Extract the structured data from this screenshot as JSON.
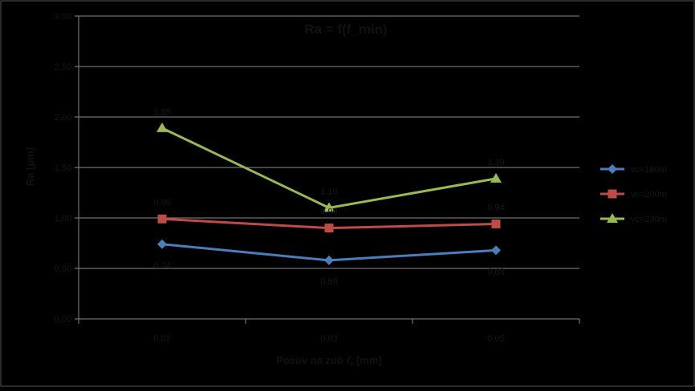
{
  "chart_data": {
    "type": "line",
    "title": "Ra = f(f_min)",
    "xlabel": "Posuv na zub",
    "xlabel_sub": "z",
    "xlabel_unit": "[mm]",
    "ylabel": "Ra [μm]",
    "categories": [
      "0,02",
      "0,03",
      "0,05"
    ],
    "ylim": [
      0,
      3
    ],
    "yticks": [
      "0,00",
      "0,50",
      "1,00",
      "1,50",
      "2,00",
      "2,50",
      "3,00"
    ],
    "grid": true,
    "legend_position": "right",
    "series": [
      {
        "name": "vc=180m",
        "color": "#4a7ebb",
        "marker": "diamond",
        "values": [
          0.74,
          0.58,
          0.68
        ],
        "labels": [
          "0,74",
          "0,58",
          "0,68"
        ],
        "label_pos": "below"
      },
      {
        "name": "vc=200m",
        "color": "#be4b48",
        "marker": "square",
        "values": [
          0.99,
          0.9,
          0.94
        ],
        "labels": [
          "0,99",
          "0,90",
          "0,94"
        ],
        "label_pos": "above"
      },
      {
        "name": "vc=230m",
        "color": "#98b954",
        "marker": "triangle",
        "values": [
          1.89,
          1.1,
          1.39
        ],
        "labels": [
          "1,89",
          "1,10",
          "1,39"
        ],
        "label_pos": "above"
      }
    ]
  }
}
